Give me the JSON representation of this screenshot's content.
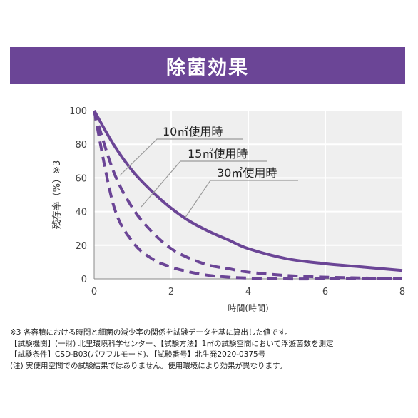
{
  "banner": {
    "title": "除菌効果"
  },
  "chart_data": {
    "type": "line",
    "xlabel": "時間(時間)",
    "ylabel": "残存率（%）※3",
    "xlim": [
      0,
      8
    ],
    "ylim": [
      0,
      100
    ],
    "xticks": [
      "0",
      "2",
      "4",
      "6",
      "8"
    ],
    "yticks": [
      "0",
      "20",
      "40",
      "60",
      "80",
      "100"
    ],
    "grid": true,
    "series": [
      {
        "name": "10㎡使用時",
        "style": "solid",
        "color": "#6b4596",
        "x": [
          0,
          0.5,
          1,
          1.5,
          2,
          2.5,
          3,
          3.5,
          4,
          5,
          6,
          7,
          8
        ],
        "y": [
          100,
          80,
          64,
          52,
          42,
          34,
          28,
          23,
          18,
          12,
          9,
          7,
          5
        ]
      },
      {
        "name": "15㎡使用時",
        "style": "dashed",
        "color": "#6b4596",
        "x": [
          0,
          0.5,
          1,
          1.5,
          2,
          2.5,
          3,
          3.5,
          4,
          5,
          6,
          7,
          8
        ],
        "y": [
          100,
          64,
          42,
          28,
          18,
          12,
          8,
          6,
          4,
          2,
          1,
          0.5,
          0
        ]
      },
      {
        "name": "30㎡使用時",
        "style": "dashed",
        "color": "#6b4596",
        "x": [
          0,
          0.5,
          1,
          1.5,
          2,
          2.5,
          3,
          3.5,
          4,
          5,
          6,
          7,
          8
        ],
        "y": [
          100,
          44,
          22,
          12,
          7,
          4,
          2,
          1,
          0.5,
          0,
          0,
          0,
          0
        ]
      }
    ],
    "annotations": [
      "10㎡使用時",
      "15㎡使用時",
      "30㎡使用時"
    ]
  },
  "notes": [
    "※3 各容積における時間と細菌の減少率の関係を試験データを基に算出した値です。",
    "【試験機関】(一財) 北里環境科学センター、【試験方法】1㎥の試験空間において浮遊菌数を測定",
    "【試験条件】CSD-B03(パワフルモード)、【試験番号】北生発2020-0375号",
    "(注) 実使用空間での試験結果ではありません。使用環境により効果が異なります。"
  ],
  "colors": {
    "accent": "#6b4596",
    "grid": "#d9d9d9",
    "axis": "#888888"
  }
}
